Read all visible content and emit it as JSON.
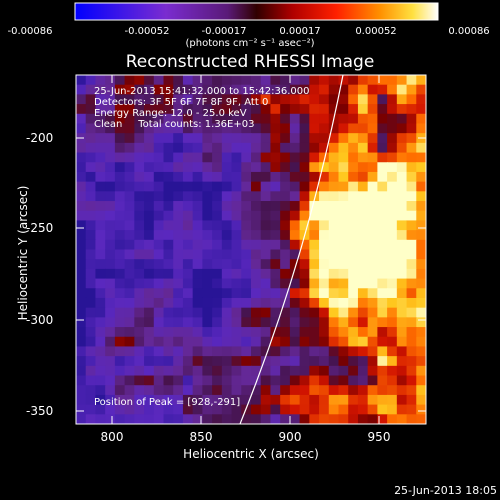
{
  "colorbar": {
    "ticks": [
      "-0.00086",
      "-0.00052",
      "-0.00017",
      "0.00017",
      "0.00052",
      "0.00086"
    ],
    "units": "(photons cm⁻² s⁻¹ asec⁻²)"
  },
  "title": "Reconstructed RHESSI Image",
  "info": {
    "time": "25-Jun-2013 15:41:32.000 to 15:42:36.000",
    "detectors": "Detectors: 3F 5F 6F 7F 8F 9F, Att 0",
    "energy": "Energy Range: 12.0 - 25.0 keV",
    "clean": "Clean     Total counts: 1.36E+03"
  },
  "peak": "Position of Peak = [928,-291]",
  "xaxis": {
    "label": "Heliocentric X (arcsec)",
    "ticks": [
      "800",
      "850",
      "900",
      "950"
    ]
  },
  "yaxis": {
    "label": "Heliocentric Y (arcsec)",
    "ticks": [
      "-200",
      "-250",
      "-300",
      "-350"
    ]
  },
  "timestamp": "25-Jun-2013 18:05",
  "colors": {
    "background": "#000000",
    "limb": "#ffffff"
  }
}
